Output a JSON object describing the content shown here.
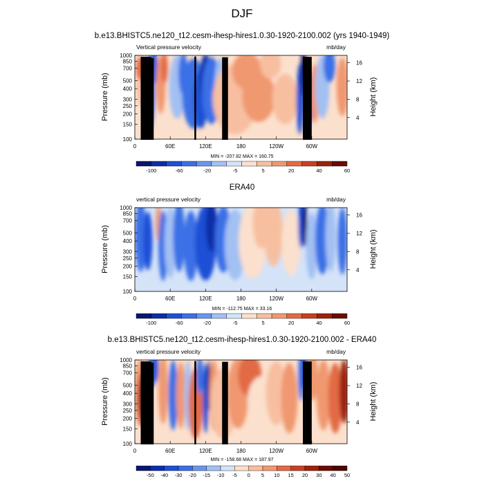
{
  "main_title": "DJF",
  "colors": {
    "scale_a": [
      "#08166e",
      "#0b2ea8",
      "#1f4fd6",
      "#3b6fe6",
      "#6b95ee",
      "#a3c0f3",
      "#d4e3f8",
      "#fbe0cd",
      "#f7bfa0",
      "#f09870",
      "#e26a45",
      "#c8401f",
      "#9c2208",
      "#6b0c00"
    ],
    "scale_b": [
      "#08166e",
      "#0b2ea8",
      "#1f4fd6",
      "#3b6fe6",
      "#6b95ee",
      "#a3c0f3",
      "#d4e3f8",
      "#fbe0cd",
      "#f7bfa0",
      "#f09870",
      "#e26a45",
      "#c8401f",
      "#9c2208",
      "#6b0c00",
      "#4a0600"
    ],
    "topography": "#000000"
  },
  "chart_data": [
    {
      "type": "heatmap",
      "title": "b.e13.BHISTC5.ne120_t12.cesm-ihesp-hires1.0.30-1920-2100.002 (yrs 1940-1949)",
      "left_label": "Vertical pressure velocity",
      "right_label": "mb/day",
      "ylabel": "Pressure (mb)",
      "y2label": "Height (km)",
      "y_ticks": [
        "100",
        "150",
        "200",
        "250",
        "300",
        "400",
        "500",
        "700",
        "850",
        "1000"
      ],
      "y2_ticks": [
        "16",
        "12",
        "8",
        "4"
      ],
      "x_ticks": [
        "0",
        "60E",
        "120E",
        "180",
        "120W",
        "60W"
      ],
      "stats": "MIN = -207.82  MAX = 160.75",
      "colorbar_labels": [
        "-100",
        "-60",
        "-20",
        "-5",
        "5",
        "20",
        "40",
        "60"
      ],
      "colorbar_levels": [
        -150,
        -100,
        -80,
        -60,
        -40,
        -20,
        -10,
        -5,
        0,
        5,
        10,
        20,
        30,
        40,
        60,
        80
      ],
      "bias_range": [
        -207.82,
        160.75
      ],
      "xlim": [
        "0",
        "360"
      ],
      "ylim": [
        1000,
        100
      ]
    },
    {
      "type": "heatmap",
      "title": "ERA40",
      "left_label": "vertical pressure velocity",
      "right_label": "mb/day",
      "ylabel": "Pressure (mb)",
      "y2label": "Height (km)",
      "y_ticks": [
        "100",
        "150",
        "200",
        "250",
        "300",
        "400",
        "500",
        "700",
        "850",
        "1000"
      ],
      "y2_ticks": [
        "16",
        "12",
        "8",
        "4"
      ],
      "x_ticks": [
        "0",
        "60E",
        "120E",
        "180",
        "120W",
        "60W"
      ],
      "stats": "MIN = -112.75  MAX = 33.16",
      "colorbar_labels": [
        "-100",
        "-60",
        "-20",
        "-5",
        "5",
        "20",
        "40",
        "60"
      ],
      "data_range": [
        -112.75,
        33.16
      ],
      "ylim": [
        1000,
        100
      ]
    },
    {
      "type": "heatmap",
      "title": "b.e13.BHISTC5.ne120_t12.cesm-ihesp-hires1.0.30-1920-2100.002 - ERA40",
      "left_label": "vertical pressure velocity",
      "right_label": "mb/day",
      "ylabel": "Pressure (mb)",
      "y2label": "Height (km)",
      "y_ticks": [
        "100",
        "150",
        "200",
        "250",
        "300",
        "400",
        "500",
        "700",
        "850",
        "1000"
      ],
      "y2_ticks": [
        "16",
        "12",
        "8",
        "4"
      ],
      "x_ticks": [
        "0",
        "60E",
        "120E",
        "180",
        "120W",
        "60W"
      ],
      "stats": "MIN = -158.68  MAX = 187.97",
      "colorbar_labels": [
        "-50",
        "-40",
        "-30",
        "-20",
        "-15",
        "-10",
        "-5",
        "0",
        "5",
        "10",
        "15",
        "20",
        "30",
        "40",
        "50"
      ],
      "data_range": [
        -158.68,
        187.97
      ],
      "ylim": [
        1000,
        100
      ]
    }
  ]
}
